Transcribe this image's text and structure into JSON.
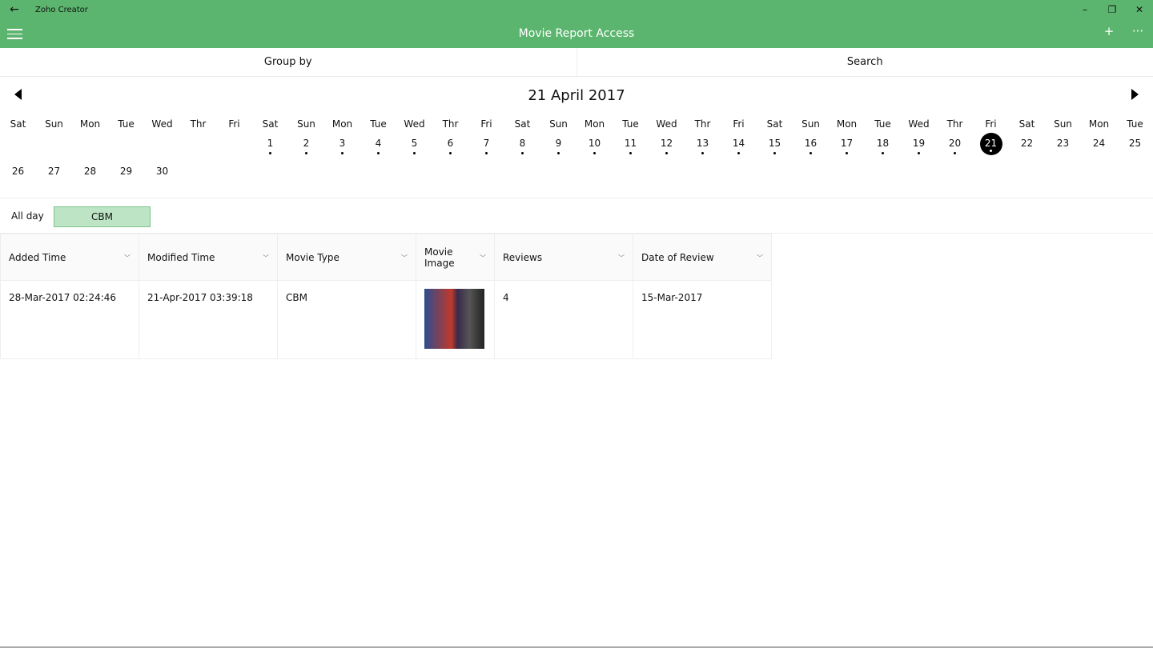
{
  "window": {
    "title": "Zoho Creator",
    "back_icon": "arrow-left-icon"
  },
  "appbar": {
    "title": "Movie Report Access",
    "add": "+",
    "more": "···"
  },
  "tabs": {
    "group_by": "Group by",
    "search": "Search"
  },
  "calendar": {
    "month_label": "21 April 2017",
    "weekdays": [
      "Sat",
      "Sun",
      "Mon",
      "Tue",
      "Wed",
      "Thr",
      "Fri",
      "Sat",
      "Sun",
      "Mon",
      "Tue",
      "Wed",
      "Thr",
      "Fri",
      "Sat",
      "Sun",
      "Mon",
      "Tue",
      "Wed",
      "Thr",
      "Fri",
      "Sat",
      "Sun",
      "Mon",
      "Tue",
      "Wed",
      "Thr",
      "Fri",
      "Sat",
      "Sun",
      "Mon",
      "Tue"
    ],
    "first_day_offset": 7,
    "days_in_month": 30,
    "days_with_events": [
      1,
      2,
      3,
      4,
      5,
      6,
      7,
      8,
      9,
      10,
      11,
      12,
      13,
      14,
      15,
      16,
      17,
      18,
      19,
      20,
      21
    ],
    "selected_day": 21
  },
  "allday": {
    "label": "All day",
    "event": "CBM",
    "event_color": "#bde4c4"
  },
  "table": {
    "columns": [
      "Added Time",
      "Modified Time",
      "Movie Type",
      "Movie Image",
      "Reviews",
      "Date of Review"
    ],
    "rows": [
      {
        "added": "28-Mar-2017 02:24:46",
        "modified": "21-Apr-2017 03:39:18",
        "type": "CBM",
        "reviews": "4",
        "date_review": "15-Mar-2017"
      }
    ]
  },
  "colors": {
    "accent": "#5bb56e"
  }
}
